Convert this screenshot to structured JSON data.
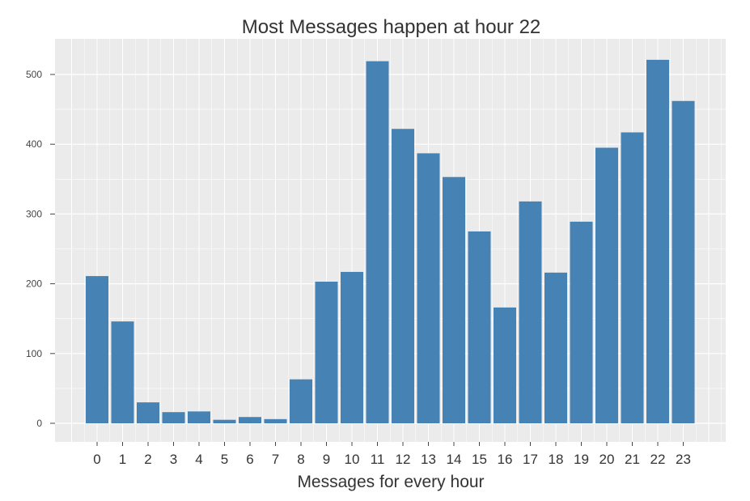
{
  "chart_data": {
    "type": "bar",
    "title": "Most Messages happen at hour 22",
    "xlabel": "Messages for every hour",
    "ylabel": "",
    "categories": [
      "0",
      "1",
      "2",
      "3",
      "4",
      "5",
      "6",
      "7",
      "8",
      "9",
      "10",
      "11",
      "12",
      "13",
      "14",
      "15",
      "16",
      "17",
      "18",
      "19",
      "20",
      "21",
      "22",
      "23"
    ],
    "values": [
      211,
      146,
      30,
      16,
      17,
      5,
      9,
      6,
      63,
      203,
      217,
      519,
      422,
      387,
      353,
      275,
      166,
      318,
      216,
      289,
      395,
      417,
      521,
      462
    ],
    "ylim": [
      0,
      550
    ],
    "yticks": [
      "0",
      "100",
      "200",
      "300",
      "400",
      "500"
    ],
    "grid": true,
    "bar_color": "#4682B4",
    "panel_color": "#EBEBEB",
    "grid_color": "#FFFFFF"
  }
}
